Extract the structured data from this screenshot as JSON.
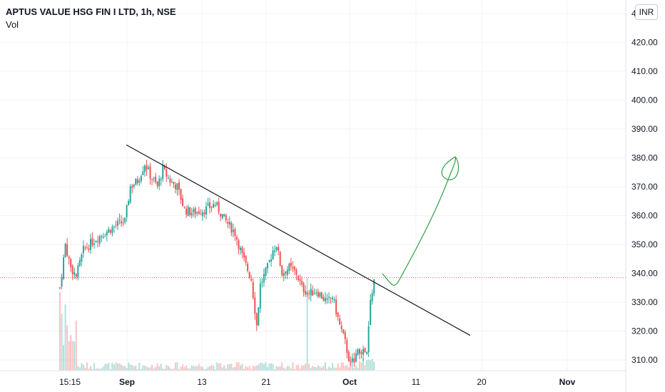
{
  "header": {
    "title": "APTUS VALUE HSG FIN I LTD, 1h, NSE",
    "volume_label": "Vol",
    "currency_button": "INR"
  },
  "colors": {
    "up": "#26a69a",
    "down": "#ef5350",
    "trendline": "#131722",
    "drawing": "#2ea043",
    "last_price_line": "#ef5350",
    "grid": "#f0f3fa"
  },
  "chart_data": {
    "type": "candlestick",
    "y_axis": {
      "ticks": [
        "310.00",
        "320.00",
        "330.00",
        "340.00",
        "350.00",
        "360.00",
        "370.00",
        "380.00",
        "390.00",
        "400.00",
        "410.00",
        "420.00",
        "4"
      ],
      "range": [
        305,
        434
      ]
    },
    "x_axis": {
      "labels": [
        "15:15",
        "Sep",
        "13",
        "21",
        "Oct",
        "11",
        "20",
        "Nov"
      ],
      "bold_labels": [
        "Sep",
        "Oct",
        "Nov"
      ]
    },
    "last_price": 338.5,
    "price_path": [
      {
        "i": 0,
        "p": 335
      },
      {
        "i": 3,
        "p": 350
      },
      {
        "i": 6,
        "p": 342
      },
      {
        "i": 9,
        "p": 339
      },
      {
        "i": 13,
        "p": 348
      },
      {
        "i": 20,
        "p": 352
      },
      {
        "i": 27,
        "p": 355
      },
      {
        "i": 32,
        "p": 357
      },
      {
        "i": 36,
        "p": 358
      },
      {
        "i": 39,
        "p": 370
      },
      {
        "i": 43,
        "p": 372
      },
      {
        "i": 47,
        "p": 378
      },
      {
        "i": 50,
        "p": 374
      },
      {
        "i": 54,
        "p": 370
      },
      {
        "i": 57,
        "p": 376
      },
      {
        "i": 61,
        "p": 372
      },
      {
        "i": 65,
        "p": 370
      },
      {
        "i": 69,
        "p": 362
      },
      {
        "i": 74,
        "p": 361
      },
      {
        "i": 80,
        "p": 362
      },
      {
        "i": 86,
        "p": 364
      },
      {
        "i": 92,
        "p": 358
      },
      {
        "i": 97,
        "p": 354
      },
      {
        "i": 101,
        "p": 346
      },
      {
        "i": 106,
        "p": 338
      },
      {
        "i": 109,
        "p": 322
      },
      {
        "i": 111,
        "p": 336
      },
      {
        "i": 115,
        "p": 342
      },
      {
        "i": 118,
        "p": 348
      },
      {
        "i": 120,
        "p": 350
      },
      {
        "i": 123,
        "p": 340
      },
      {
        "i": 127,
        "p": 342
      },
      {
        "i": 131,
        "p": 340
      },
      {
        "i": 134,
        "p": 335
      },
      {
        "i": 138,
        "p": 333
      },
      {
        "i": 142,
        "p": 334
      },
      {
        "i": 145,
        "p": 332
      },
      {
        "i": 148,
        "p": 330
      },
      {
        "i": 151,
        "p": 332
      },
      {
        "i": 155,
        "p": 322
      },
      {
        "i": 158,
        "p": 316
      },
      {
        "i": 161,
        "p": 308
      },
      {
        "i": 164,
        "p": 312
      },
      {
        "i": 167,
        "p": 313
      },
      {
        "i": 170,
        "p": 312
      },
      {
        "i": 172,
        "p": 330
      },
      {
        "i": 174,
        "p": 338
      }
    ],
    "trendline": {
      "from": [
        0.255,
        384.5
      ],
      "to": [
        0.98,
        318.5
      ]
    },
    "drawing": "hand-drawn green upward arrow from the breakout point toward about 380"
  }
}
